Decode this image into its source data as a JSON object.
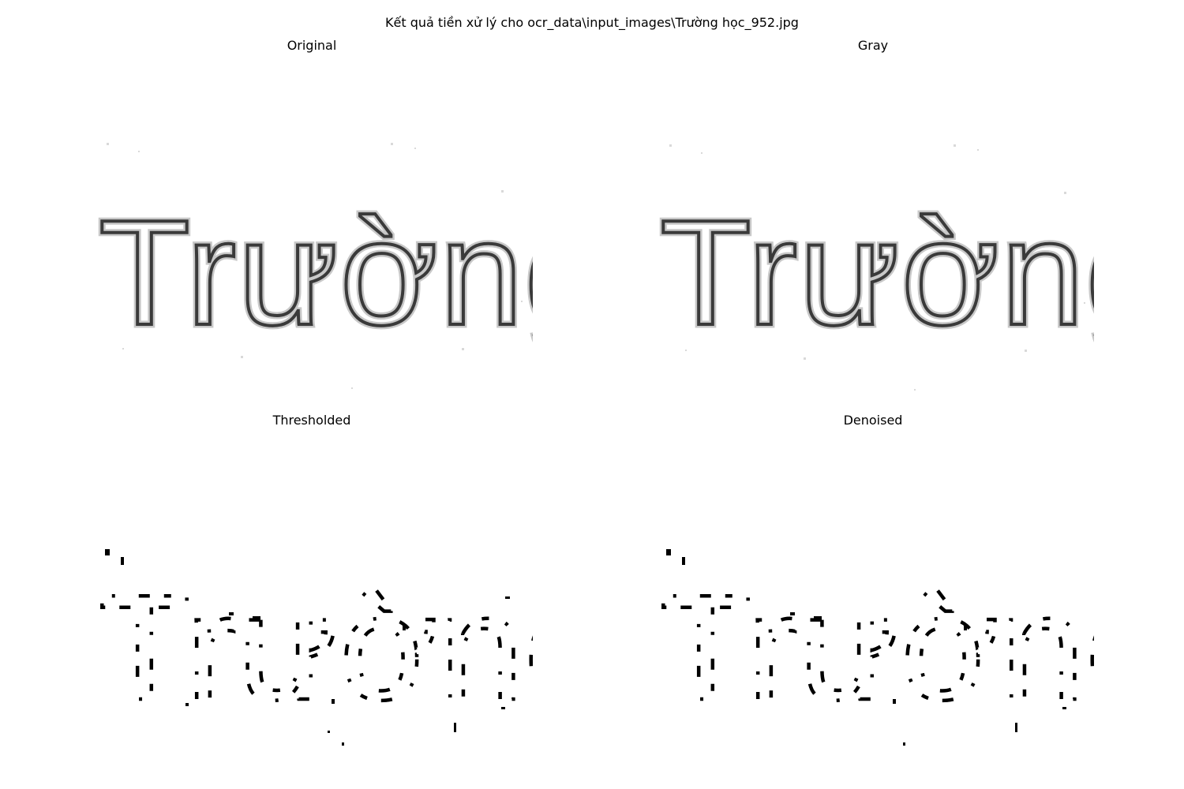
{
  "figure": {
    "suptitle": "Kết quả tiền xử lý cho ocr_data\\input_images\\Trường học_952.jpg"
  },
  "panels": [
    {
      "title": "Original",
      "image_text": "Trường học",
      "style": "grayscale-soft"
    },
    {
      "title": "Gray",
      "image_text": "Trường học",
      "style": "grayscale-soft"
    },
    {
      "title": "Thresholded",
      "image_text": "Trường học",
      "style": "binary"
    },
    {
      "title": "Denoised",
      "image_text": "Trường học",
      "style": "binary"
    }
  ],
  "colors": {
    "background": "#ffffff",
    "ink": "#000000",
    "soft_ink": "#3a3a3a"
  }
}
